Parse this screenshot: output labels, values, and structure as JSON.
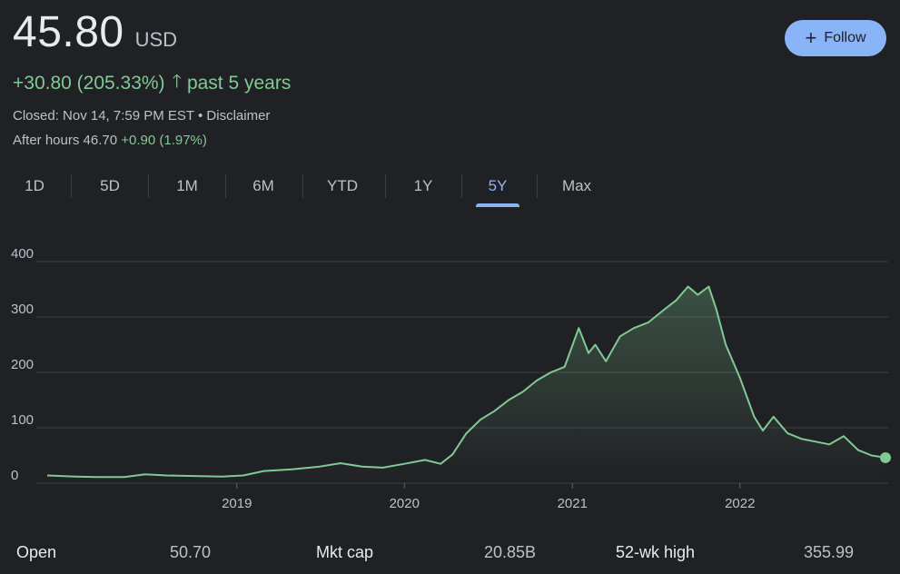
{
  "quote": {
    "price": "45.80",
    "currency": "USD",
    "change": "+30.80 (205.33%)",
    "change_period": "past 5 years",
    "closed_text": "Closed: Nov 14, 7:59 PM EST • Disclaimer",
    "after_hours_label": "After hours 46.70",
    "after_hours_change": "+0.90 (1.97%)"
  },
  "follow_button": {
    "label": "Follow"
  },
  "tabs": [
    {
      "label": "1D"
    },
    {
      "label": "5D"
    },
    {
      "label": "1M"
    },
    {
      "label": "6M"
    },
    {
      "label": "YTD"
    },
    {
      "label": "1Y"
    },
    {
      "label": "5Y",
      "active": true
    },
    {
      "label": "Max"
    }
  ],
  "colors": {
    "accent": "#8ab4f8",
    "positive": "#81c995",
    "background": "#202124"
  },
  "stats": [
    {
      "label": "Open",
      "value": "50.70"
    },
    {
      "label": "Mkt cap",
      "value": "20.85B"
    },
    {
      "label": "52-wk high",
      "value": "355.99"
    }
  ],
  "chart_data": {
    "type": "area",
    "title": "",
    "xlabel": "",
    "ylabel": "",
    "y_ticks": [
      "0",
      "100",
      "200",
      "300",
      "400"
    ],
    "x_ticks": [
      "2019",
      "2020",
      "2021",
      "2022"
    ],
    "ylim": [
      0,
      400
    ],
    "xlim": [
      "2017-11-14",
      "2022-11-14"
    ],
    "grid": true,
    "series": [
      {
        "x": [
          "2017-11-14",
          "2018-01-15",
          "2018-03-01",
          "2018-05-01",
          "2018-06-15",
          "2018-08-01",
          "2018-10-01",
          "2018-12-01",
          "2019-01-15",
          "2019-03-01",
          "2019-05-01",
          "2019-07-01",
          "2019-08-15",
          "2019-10-01",
          "2019-11-15",
          "2020-01-01",
          "2020-02-15",
          "2020-03-20",
          "2020-04-15",
          "2020-05-15",
          "2020-06-15",
          "2020-07-15",
          "2020-08-15",
          "2020-09-15",
          "2020-10-15",
          "2020-11-15",
          "2020-12-15",
          "2021-01-15",
          "2021-02-05",
          "2021-02-20",
          "2021-03-15",
          "2021-04-15",
          "2021-05-15",
          "2021-06-15",
          "2021-07-15",
          "2021-08-15",
          "2021-09-10",
          "2021-10-01",
          "2021-10-25",
          "2021-11-10",
          "2021-12-01",
          "2022-01-01",
          "2022-02-01",
          "2022-02-20",
          "2022-03-15",
          "2022-04-15",
          "2022-05-15",
          "2022-06-15",
          "2022-07-15",
          "2022-08-15",
          "2022-09-15",
          "2022-10-15",
          "2022-11-14"
        ],
        "y": [
          14,
          12,
          11,
          11,
          16,
          14,
          13,
          12,
          14,
          22,
          25,
          30,
          36,
          30,
          28,
          35,
          42,
          35,
          52,
          90,
          115,
          130,
          150,
          165,
          185,
          200,
          210,
          280,
          235,
          250,
          220,
          265,
          280,
          290,
          310,
          330,
          355,
          340,
          355,
          315,
          250,
          190,
          120,
          95,
          120,
          90,
          80,
          75,
          70,
          85,
          60,
          50,
          46
        ]
      }
    ],
    "end_point": {
      "x": "2022-11-14",
      "y": 46
    }
  }
}
